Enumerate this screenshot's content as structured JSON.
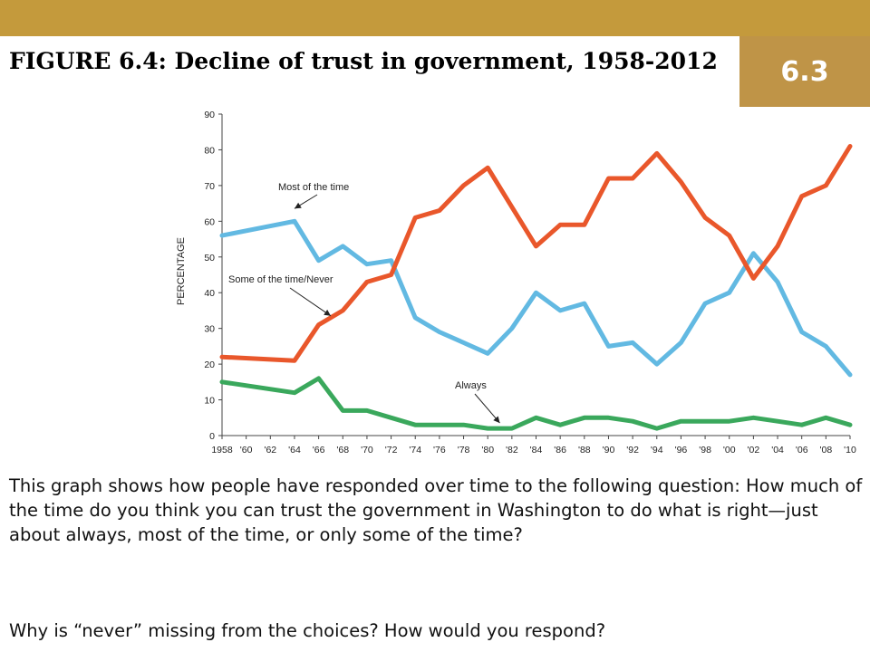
{
  "slide": {
    "section_number": "6.3",
    "title": "FIGURE 6.4: Decline of trust in government, 1958-2012",
    "caption": "This graph shows how people have responded over time to the following question: How much of the time do you think you can trust the government in Washington to do what is right—just about always, most of the time, or only some of the time?",
    "question": "Why is “never” missing from the choices?  How would you respond?"
  },
  "colors": {
    "header_bar": "#c49a3c",
    "badge": "#bf9447",
    "most_of_the_time": "#62b9e2",
    "some_of_the_time_never": "#e9572b",
    "always": "#3aa85c"
  },
  "chart_data": {
    "type": "line",
    "xlabel": "",
    "ylabel": "PERCENTAGE",
    "ylim": [
      0,
      90
    ],
    "yticks": [
      0,
      10,
      20,
      30,
      40,
      50,
      60,
      70,
      80,
      90
    ],
    "xlim": [
      1958,
      2010
    ],
    "xtick_labels": [
      "1958",
      "'60",
      "'62",
      "'64",
      "'66",
      "'68",
      "'70",
      "'72",
      "'74",
      "'76",
      "'78",
      "'80",
      "'82",
      "'84",
      "'86",
      "'88",
      "'90",
      "'92",
      "'94",
      "'96",
      "'98",
      "'00",
      "'02",
      "'04",
      "'06",
      "'08",
      "'10"
    ],
    "grid": false,
    "legend": "inline annotations",
    "series": [
      {
        "name": "Most of the time",
        "color_key": "most_of_the_time",
        "x": [
          1958,
          1964,
          1966,
          1968,
          1970,
          1972,
          1974,
          1976,
          1978,
          1980,
          1982,
          1984,
          1986,
          1988,
          1990,
          1992,
          1994,
          1996,
          1998,
          2000,
          2002,
          2004,
          2006,
          2008,
          2010
        ],
        "y": [
          56,
          60,
          49,
          53,
          48,
          49,
          33,
          29,
          26,
          23,
          30,
          40,
          35,
          37,
          25,
          26,
          20,
          26,
          37,
          40,
          51,
          43,
          29,
          25,
          17
        ]
      },
      {
        "name": "Some of the time/Never",
        "color_key": "some_of_the_time_never",
        "x": [
          1958,
          1964,
          1966,
          1968,
          1970,
          1972,
          1974,
          1976,
          1978,
          1980,
          1982,
          1984,
          1986,
          1988,
          1990,
          1992,
          1994,
          1996,
          1998,
          2000,
          2002,
          2004,
          2006,
          2008,
          2010
        ],
        "y": [
          22,
          21,
          31,
          35,
          43,
          45,
          61,
          63,
          70,
          75,
          64,
          53,
          59,
          59,
          72,
          72,
          79,
          71,
          61,
          56,
          44,
          53,
          67,
          70,
          81
        ]
      },
      {
        "name": "Always",
        "color_key": "always",
        "x": [
          1958,
          1964,
          1966,
          1968,
          1970,
          1972,
          1974,
          1976,
          1978,
          1980,
          1982,
          1984,
          1986,
          1988,
          1990,
          1992,
          1994,
          1996,
          1998,
          2000,
          2002,
          2004,
          2006,
          2008,
          2010
        ],
        "y": [
          15,
          12,
          16,
          7,
          7,
          5,
          3,
          3,
          3,
          2,
          2,
          5,
          3,
          5,
          5,
          4,
          2,
          4,
          4,
          4,
          5,
          4,
          3,
          5,
          3
        ]
      }
    ],
    "annotations": [
      {
        "text": "Most of the time",
        "series": "Most of the time",
        "x": 1964,
        "y": 60
      },
      {
        "text": "Some of the time/Never",
        "series": "Some of the time/Never",
        "x": 1967,
        "y": 32
      },
      {
        "text": "Always",
        "series": "Always",
        "x": 1981,
        "y": 2
      }
    ]
  }
}
